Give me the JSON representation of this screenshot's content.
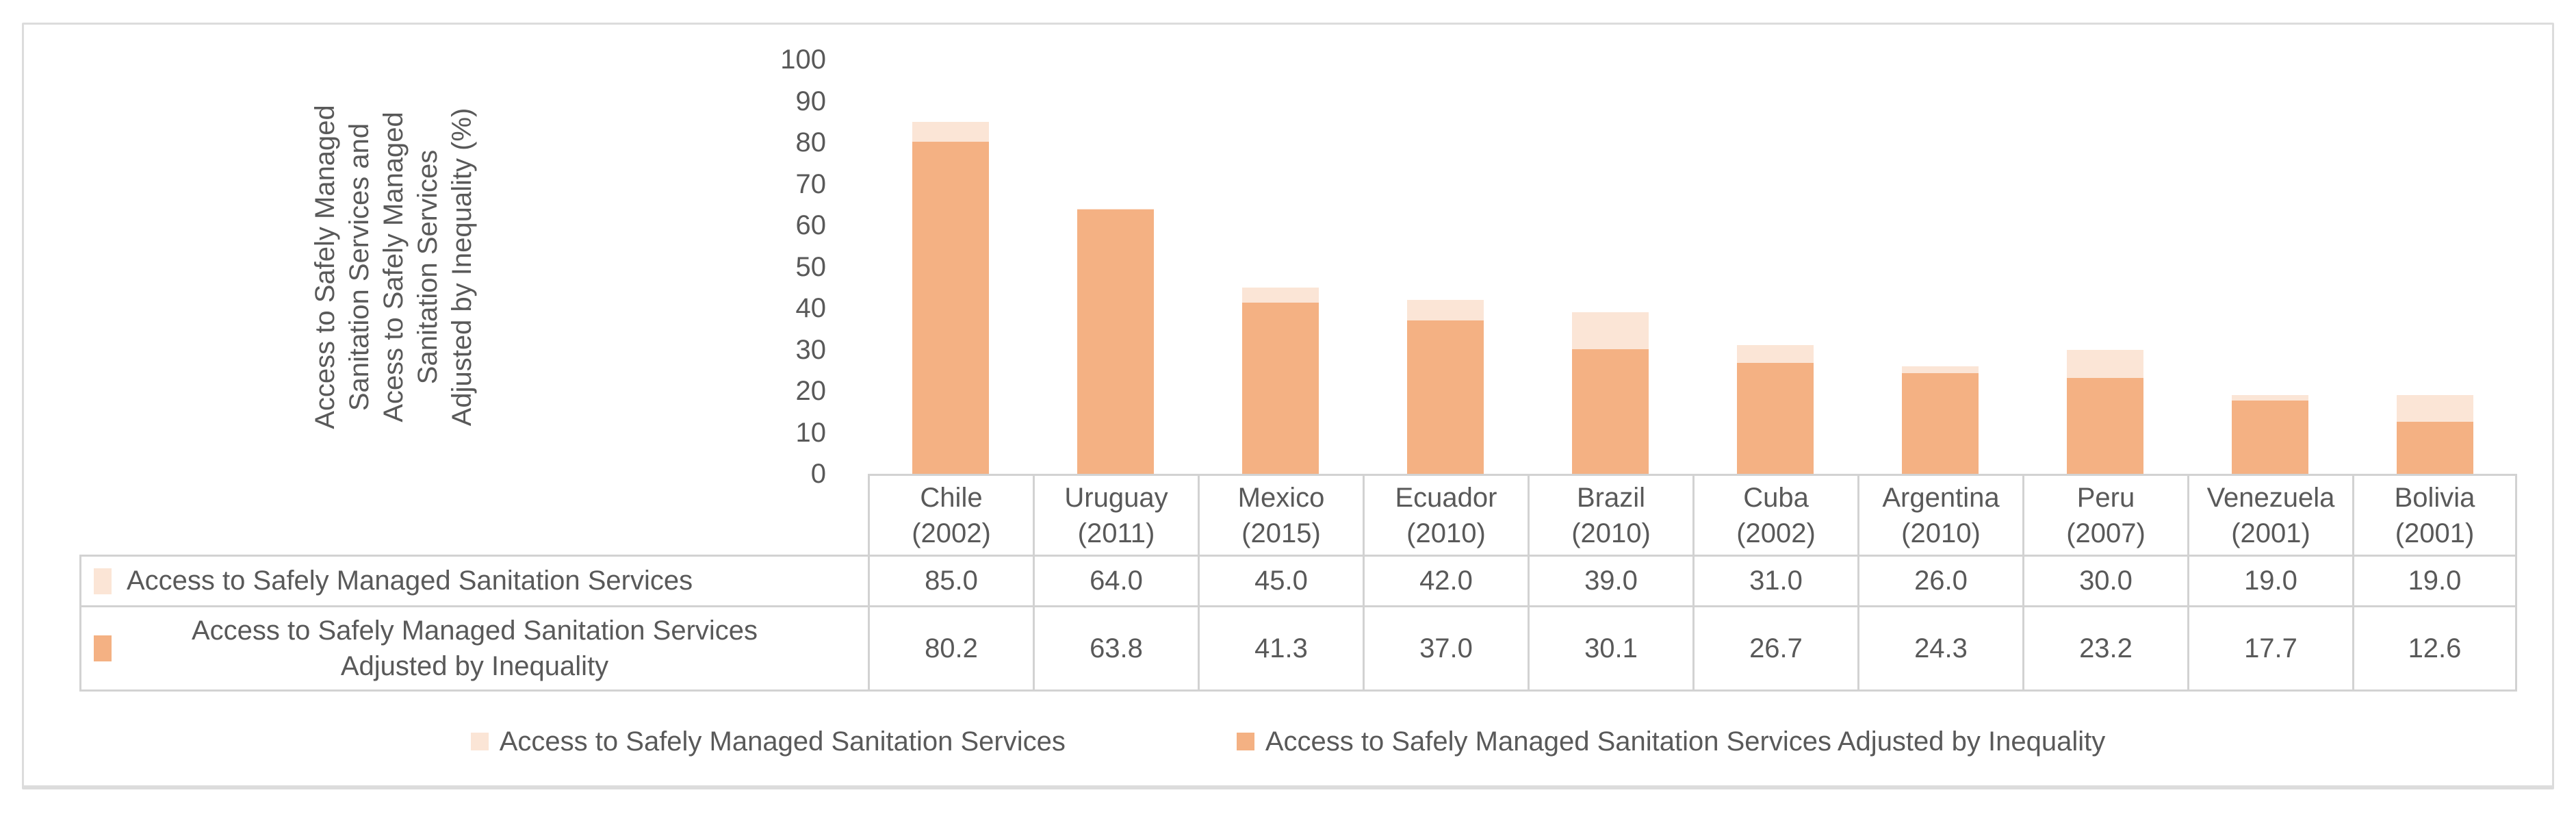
{
  "figure": {
    "y_axis": {
      "title_lines": [
        "Access to Safely Managed",
        "Sanitation Services and",
        "Acess to Safely Managed",
        "Sanitation Services",
        "Adjusted by Inequality (%)"
      ],
      "tick_labels": [
        "100",
        "90",
        "80",
        "70",
        "60",
        "50",
        "40",
        "30",
        "20",
        "10",
        "0"
      ]
    },
    "legend": {
      "items": [
        {
          "label": "Access to Safely Managed Sanitation Services",
          "color": "#FBE5D6"
        },
        {
          "label": "Access to Safely Managed Sanitation Services Adjusted by Inequality",
          "color": "#F4B183"
        }
      ]
    },
    "colors": {
      "series1": "#FBE5D6",
      "series2": "#F4B183",
      "text": "#595959",
      "table_border": "#D2D2D2",
      "frame_border": "#DCDCDC"
    }
  },
  "chart_data": {
    "type": "bar",
    "bar_mode": "overlapped",
    "title": "",
    "xlabel": "",
    "ylabel": "Access to Safely Managed Sanitation Services and Acess to Safely Managed Sanitation Services Adjusted by Inequality (%)",
    "categories": [
      "Chile",
      "Uruguay",
      "Mexico",
      "Ecuador",
      "Brazil",
      "Cuba",
      "Argentina",
      "Peru",
      "Venezuela",
      "Bolivia"
    ],
    "category_years": [
      "(2002)",
      "(2011)",
      "(2015)",
      "(2010)",
      "(2010)",
      "(2002)",
      "(2010)",
      "(2007)",
      "(2001)",
      "(2001)"
    ],
    "series": [
      {
        "name": "Access to Safely Managed Sanitation Services",
        "color": "#FBE5D6",
        "values": [
          85.0,
          64.0,
          45.0,
          42.0,
          39.0,
          31.0,
          26.0,
          30.0,
          19.0,
          19.0
        ]
      },
      {
        "name": "Access to Safely Managed Sanitation Services Adjusted by Inequality",
        "color": "#F4B183",
        "values": [
          80.2,
          63.8,
          41.3,
          37.0,
          30.1,
          26.7,
          24.3,
          23.2,
          17.7,
          12.6
        ]
      }
    ],
    "ylim": [
      0,
      100
    ],
    "ytick_interval": 10,
    "grid": false,
    "legend_position": "bottom",
    "values_table_shown": true
  }
}
